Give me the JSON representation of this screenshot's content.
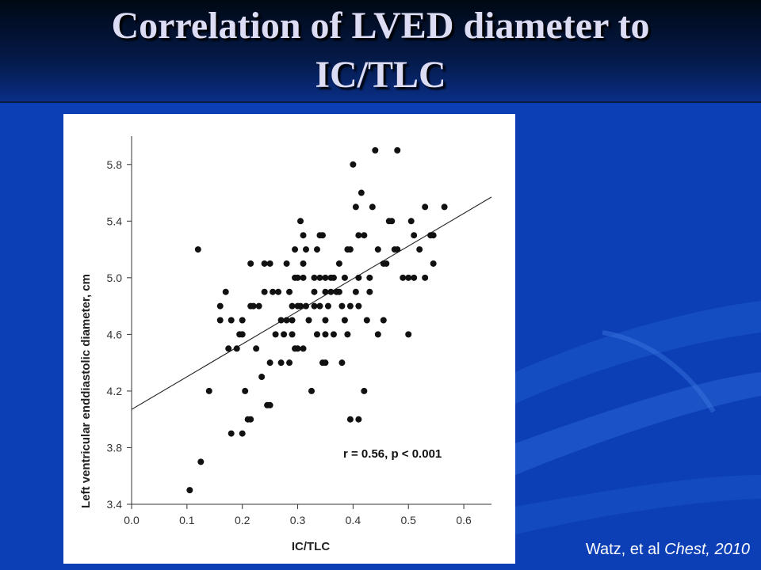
{
  "slide": {
    "title_line1": "Correlation of LVED diameter to",
    "title_line2": "IC/TLC",
    "citation": {
      "authors": "Watz, et al",
      "journal_year": "Chest, 2010"
    }
  },
  "colors": {
    "background": "#0c3fb6",
    "header": "#041a4a",
    "title_text": "#dcdcf5",
    "points": "#111111"
  },
  "chart_data": {
    "type": "scatter",
    "xlabel": "IC/TLC",
    "ylabel": "Left ventricular enddiastolic diameter, cm",
    "xlim": [
      0.0,
      0.65
    ],
    "ylim": [
      3.4,
      6.0
    ],
    "xticks": [
      "0.0",
      "0.1",
      "0.2",
      "0.3",
      "0.4",
      "0.5",
      "0.6"
    ],
    "yticks": [
      "3.4",
      "3.8",
      "4.2",
      "4.6",
      "5.0",
      "5.4",
      "5.8"
    ],
    "grid": false,
    "annotation": "r = 0.56, p < 0.001",
    "regression_line": {
      "x": [
        0.0,
        0.65
      ],
      "y": [
        4.07,
        5.57
      ]
    },
    "points": [
      [
        0.105,
        3.5
      ],
      [
        0.125,
        3.7
      ],
      [
        0.14,
        4.2
      ],
      [
        0.12,
        5.2
      ],
      [
        0.16,
        4.7
      ],
      [
        0.16,
        4.8
      ],
      [
        0.17,
        4.9
      ],
      [
        0.175,
        4.5
      ],
      [
        0.18,
        3.9
      ],
      [
        0.18,
        4.7
      ],
      [
        0.19,
        4.5
      ],
      [
        0.195,
        4.6
      ],
      [
        0.2,
        3.9
      ],
      [
        0.2,
        4.6
      ],
      [
        0.2,
        4.7
      ],
      [
        0.205,
        4.2
      ],
      [
        0.21,
        4.0
      ],
      [
        0.215,
        4.0
      ],
      [
        0.215,
        4.8
      ],
      [
        0.215,
        5.1
      ],
      [
        0.22,
        4.8
      ],
      [
        0.225,
        4.5
      ],
      [
        0.23,
        4.8
      ],
      [
        0.235,
        4.3
      ],
      [
        0.24,
        4.9
      ],
      [
        0.24,
        5.1
      ],
      [
        0.245,
        4.1
      ],
      [
        0.25,
        4.1
      ],
      [
        0.25,
        4.4
      ],
      [
        0.25,
        5.1
      ],
      [
        0.255,
        4.9
      ],
      [
        0.26,
        4.6
      ],
      [
        0.265,
        4.9
      ],
      [
        0.27,
        4.4
      ],
      [
        0.27,
        4.7
      ],
      [
        0.275,
        4.6
      ],
      [
        0.28,
        4.7
      ],
      [
        0.28,
        5.1
      ],
      [
        0.285,
        4.4
      ],
      [
        0.285,
        4.9
      ],
      [
        0.29,
        4.6
      ],
      [
        0.29,
        4.7
      ],
      [
        0.29,
        4.8
      ],
      [
        0.295,
        5.0
      ],
      [
        0.295,
        5.2
      ],
      [
        0.295,
        4.5
      ],
      [
        0.3,
        4.5
      ],
      [
        0.3,
        4.8
      ],
      [
        0.3,
        5.0
      ],
      [
        0.305,
        5.4
      ],
      [
        0.305,
        4.8
      ],
      [
        0.31,
        5.0
      ],
      [
        0.31,
        5.1
      ],
      [
        0.31,
        5.3
      ],
      [
        0.31,
        4.5
      ],
      [
        0.315,
        4.8
      ],
      [
        0.315,
        5.2
      ],
      [
        0.32,
        4.7
      ],
      [
        0.325,
        4.2
      ],
      [
        0.33,
        4.8
      ],
      [
        0.33,
        4.9
      ],
      [
        0.33,
        5.0
      ],
      [
        0.335,
        5.2
      ],
      [
        0.335,
        4.6
      ],
      [
        0.34,
        4.8
      ],
      [
        0.34,
        5.0
      ],
      [
        0.34,
        5.3
      ],
      [
        0.345,
        4.4
      ],
      [
        0.345,
        5.3
      ],
      [
        0.35,
        4.4
      ],
      [
        0.35,
        4.9
      ],
      [
        0.35,
        5.0
      ],
      [
        0.35,
        4.7
      ],
      [
        0.35,
        4.6
      ],
      [
        0.355,
        4.8
      ],
      [
        0.36,
        5.0
      ],
      [
        0.36,
        4.9
      ],
      [
        0.365,
        5.0
      ],
      [
        0.365,
        4.6
      ],
      [
        0.37,
        4.9
      ],
      [
        0.375,
        5.1
      ],
      [
        0.375,
        4.9
      ],
      [
        0.38,
        4.4
      ],
      [
        0.38,
        4.8
      ],
      [
        0.385,
        5.0
      ],
      [
        0.385,
        4.7
      ],
      [
        0.39,
        5.2
      ],
      [
        0.39,
        4.6
      ],
      [
        0.395,
        4.8
      ],
      [
        0.395,
        5.2
      ],
      [
        0.395,
        4.0
      ],
      [
        0.4,
        5.8
      ],
      [
        0.405,
        4.9
      ],
      [
        0.405,
        5.5
      ],
      [
        0.41,
        4.8
      ],
      [
        0.41,
        5.0
      ],
      [
        0.41,
        5.3
      ],
      [
        0.41,
        4.0
      ],
      [
        0.415,
        5.6
      ],
      [
        0.42,
        4.2
      ],
      [
        0.42,
        5.3
      ],
      [
        0.425,
        4.7
      ],
      [
        0.43,
        4.9
      ],
      [
        0.43,
        5.0
      ],
      [
        0.435,
        5.5
      ],
      [
        0.44,
        5.9
      ],
      [
        0.445,
        5.2
      ],
      [
        0.445,
        4.6
      ],
      [
        0.455,
        5.1
      ],
      [
        0.455,
        4.7
      ],
      [
        0.46,
        5.1
      ],
      [
        0.465,
        5.4
      ],
      [
        0.47,
        5.4
      ],
      [
        0.475,
        5.2
      ],
      [
        0.48,
        5.2
      ],
      [
        0.48,
        5.9
      ],
      [
        0.49,
        5.0
      ],
      [
        0.5,
        5.0
      ],
      [
        0.5,
        4.6
      ],
      [
        0.505,
        5.4
      ],
      [
        0.51,
        5.3
      ],
      [
        0.51,
        5.0
      ],
      [
        0.52,
        5.2
      ],
      [
        0.53,
        5.0
      ],
      [
        0.53,
        5.5
      ],
      [
        0.54,
        5.3
      ],
      [
        0.545,
        5.3
      ],
      [
        0.545,
        5.1
      ],
      [
        0.565,
        5.5
      ]
    ]
  }
}
